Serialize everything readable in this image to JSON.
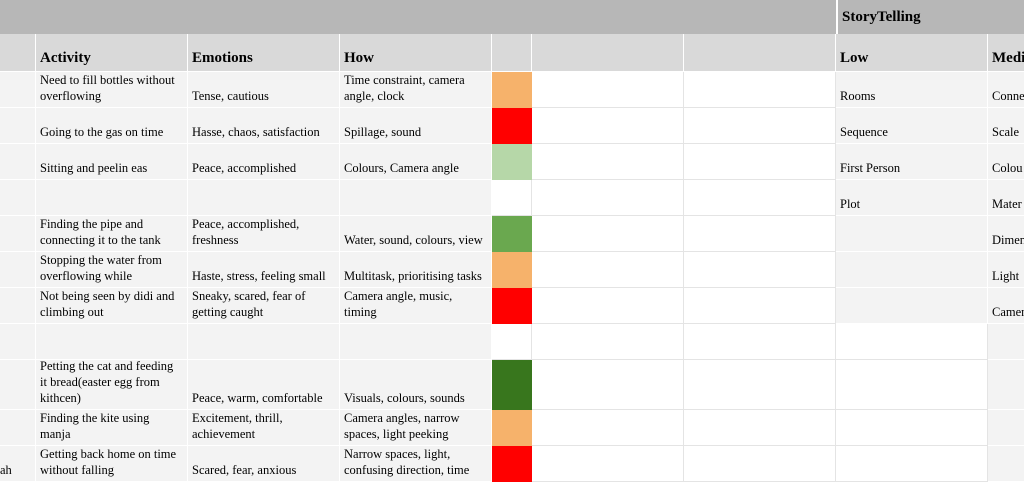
{
  "sheet": {
    "top_band": {
      "title": "StoryTelling"
    },
    "headers": {
      "activity": "Activity",
      "emotions": "Emotions",
      "how": "How",
      "low": "Low",
      "medium": "Medi"
    },
    "colors": {
      "orange": "#F6B26B",
      "red": "#FF0000",
      "light_green": "#B6D7A8",
      "green": "#6AA84F",
      "dark_green": "#38761D",
      "band_gray": "#B7B7B7",
      "header_gray": "#D9D9D9",
      "row_fill": "#F3F3F3"
    },
    "overflow_text": "ah",
    "rows": [
      {
        "activity": "Need to fill bottles without overflowing",
        "emotions": "Tense, cautious",
        "how": "Time constraint, camera angle, clock",
        "color": "orange",
        "low": "Rooms",
        "medium": "Conne"
      },
      {
        "activity": "Going to the gas on time",
        "emotions": "Hasse, chaos, satisfaction",
        "how": "Spillage, sound",
        "color": "red",
        "low": "Sequence",
        "medium": "Scale"
      },
      {
        "activity": "Sitting and peelin eas",
        "emotions": "Peace, accomplished",
        "how": "Colours, Camera angle",
        "color": "light_green",
        "low": "First Person",
        "medium": "Colou"
      },
      {
        "activity": "",
        "emotions": "",
        "how": "",
        "color": "",
        "low": "Plot",
        "medium": "Mater"
      },
      {
        "activity": "Finding the pipe and connecting it to the tank",
        "emotions": "Peace, accomplished, freshness",
        "how": "Water, sound, colours, view",
        "color": "green",
        "low": "",
        "medium": "Dimen"
      },
      {
        "activity": "Stopping the water from overflowing while",
        "emotions": "Haste, stress, feeling small",
        "how": "Multitask, prioritising tasks",
        "color": "orange",
        "low": "",
        "medium": "Light"
      },
      {
        "activity": "Not being seen by didi and climbing out",
        "emotions": "Sneaky, scared, fear of getting caught",
        "how": "Camera angle, music, timing",
        "color": "red",
        "low": "",
        "medium": "Camer"
      },
      {
        "activity": "",
        "emotions": "",
        "how": "",
        "color": "",
        "low": "",
        "medium": ""
      },
      {
        "activity": "Petting the cat and feeding it bread(easter egg from kithcen)",
        "emotions": "Peace, warm, comfortable",
        "how": "Visuals, colours, sounds",
        "color": "dark_green",
        "low": "",
        "medium": ""
      },
      {
        "activity": "Finding the kite using manja",
        "emotions": "Excitement, thrill, achievement",
        "how": "Camera angles, narrow spaces, light peeking",
        "color": "orange",
        "low": "",
        "medium": ""
      },
      {
        "activity": "Getting back home on time without falling",
        "emotions": "Scared, fear, anxious",
        "how": "Narrow spaces, light, confusing direction, time",
        "color": "red",
        "low": "",
        "medium": ""
      }
    ]
  }
}
